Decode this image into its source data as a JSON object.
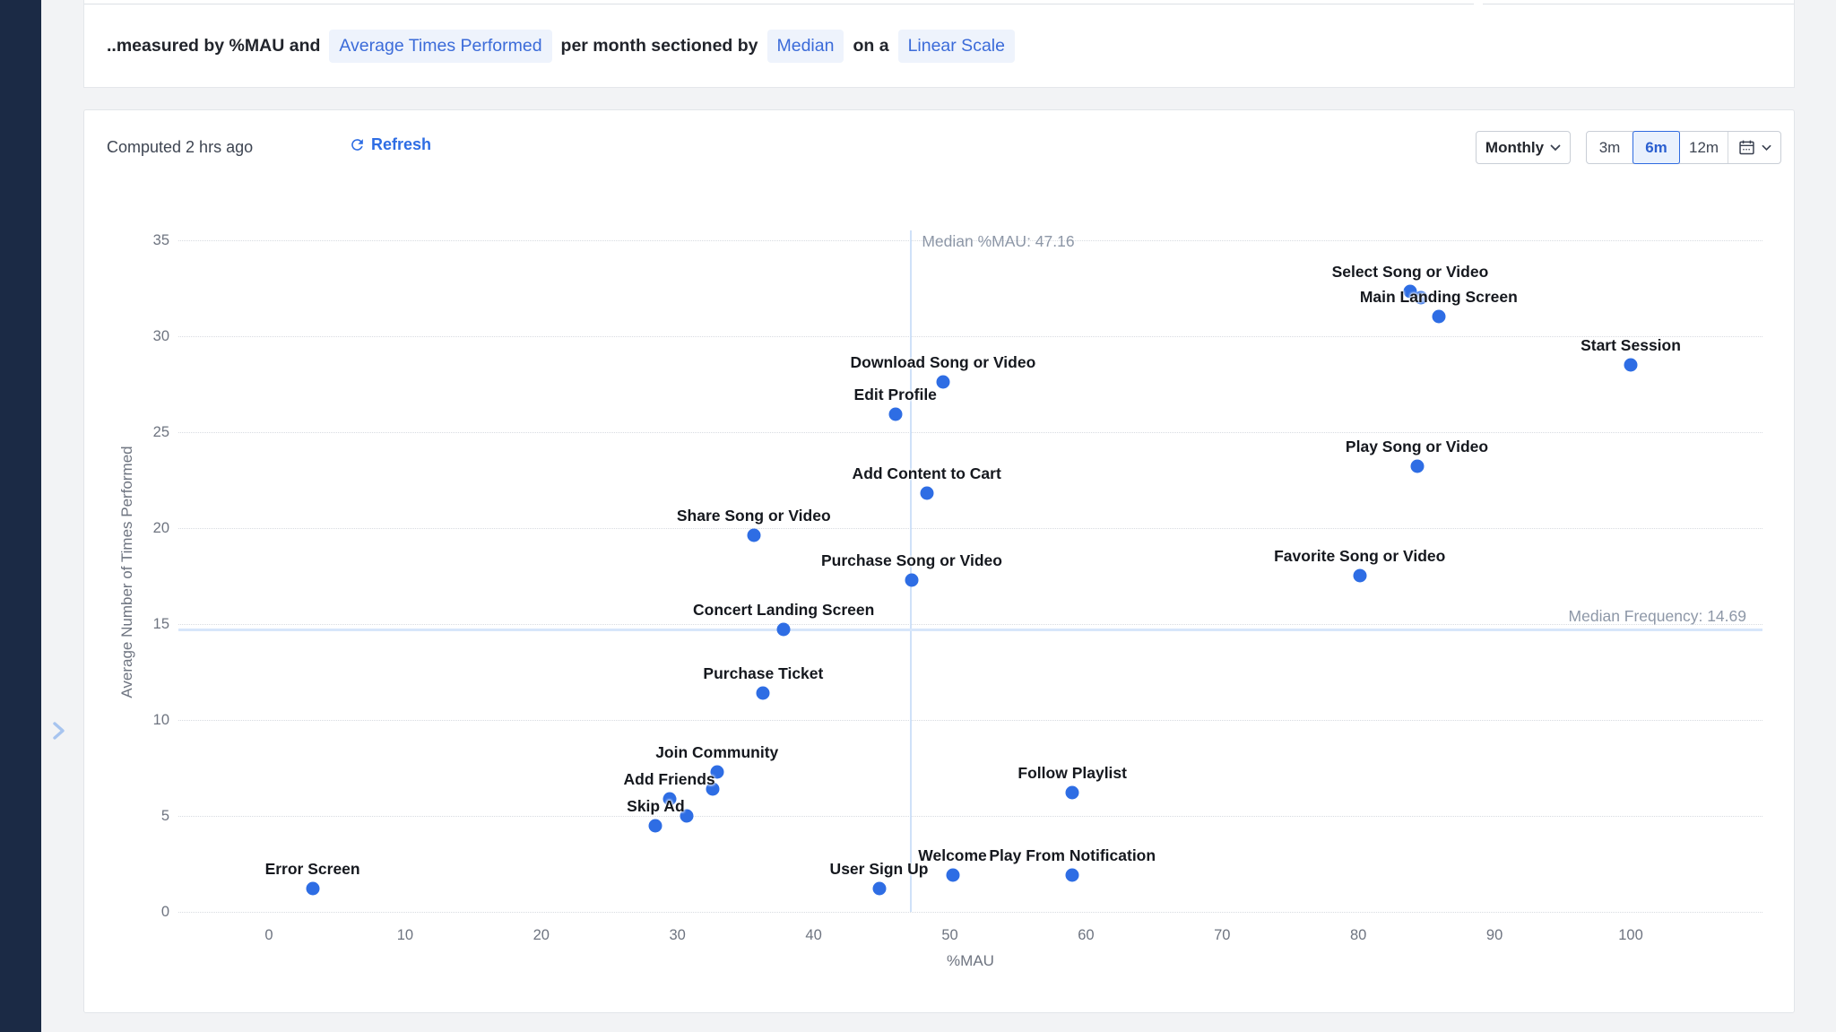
{
  "colors": {
    "accent": "#2e6de4",
    "sidebar": "#1b2a45",
    "background": "#f2f3f5",
    "point": "#2e6de4",
    "median_line": "#cfe1f8",
    "selected_range_bg": "#e9f1fd",
    "selected_range_border": "#2f6be0",
    "pill_bg": "#eef3fc",
    "pill_text": "#3b6bd9"
  },
  "icons": {
    "collapse_chevron": "chevron-right",
    "refresh": "refresh-circular-arrows",
    "granularity_caret": "chevron-down",
    "calendar": "calendar",
    "calendar_caret": "chevron-down"
  },
  "query_summary": {
    "prefix": "..measured by %MAU and",
    "measure_pill": "Average Times Performed",
    "mid1": "per month sectioned by",
    "section_pill": "Median",
    "mid2": "on a",
    "scale_pill": "Linear Scale"
  },
  "chart_card": {
    "computed_label": "Computed 2 hrs ago",
    "refresh_label": "Refresh",
    "granularity_label": "Monthly",
    "ranges": [
      "3m",
      "6m",
      "12m"
    ],
    "selected_range": "6m"
  },
  "chart_data": {
    "type": "scatter",
    "xlabel": "%MAU",
    "ylabel": "Average Number of Times Performed",
    "xlim": [
      0,
      109
    ],
    "ylim": [
      0,
      35
    ],
    "x_ticks": [
      0,
      10,
      20,
      30,
      40,
      50,
      60,
      70,
      80,
      90,
      100
    ],
    "y_ticks": [
      0,
      5,
      10,
      15,
      20,
      25,
      30,
      35
    ],
    "grid": "horizontal-dotted",
    "median_x": {
      "value": 47.16,
      "label": "Median %MAU: 47.16"
    },
    "median_y": {
      "value": 14.69,
      "label": "Median Frequency: 14.69"
    },
    "points": [
      {
        "label": "Select Song or Video",
        "x": 83.8,
        "y": 32.3
      },
      {
        "label": "",
        "x": 84.6,
        "y": 32.0
      },
      {
        "label": "Main Landing Screen",
        "x": 85.9,
        "y": 31.0
      },
      {
        "label": "Start Session",
        "x": 100.0,
        "y": 28.5
      },
      {
        "label": "Download Song or Video",
        "x": 49.5,
        "y": 27.6
      },
      {
        "label": "Edit Profile",
        "x": 46.0,
        "y": 25.9
      },
      {
        "label": "Play Song or Video",
        "x": 84.3,
        "y": 23.2
      },
      {
        "label": "Add Content to Cart",
        "x": 48.3,
        "y": 21.8
      },
      {
        "label": "Share Song or Video",
        "x": 35.6,
        "y": 19.6
      },
      {
        "label": "Favorite Song or Video",
        "x": 80.1,
        "y": 17.5
      },
      {
        "label": "Purchase Song or Video",
        "x": 47.2,
        "y": 17.3
      },
      {
        "label": "Concert Landing Screen",
        "x": 37.8,
        "y": 14.7
      },
      {
        "label": "Purchase Ticket",
        "x": 36.3,
        "y": 11.4
      },
      {
        "label": "Join Community",
        "x": 32.9,
        "y": 7.3
      },
      {
        "label": "",
        "x": 32.6,
        "y": 6.4
      },
      {
        "label": "Follow Playlist",
        "x": 59.0,
        "y": 6.2
      },
      {
        "label": "Add Friends",
        "x": 29.4,
        "y": 5.9
      },
      {
        "label": "",
        "x": 30.7,
        "y": 5.0
      },
      {
        "label": "Skip Ad",
        "x": 28.4,
        "y": 4.5
      },
      {
        "label": "Welcome",
        "x": 50.2,
        "y": 1.9
      },
      {
        "label": "Play From Notification",
        "x": 59.0,
        "y": 1.9
      },
      {
        "label": "User Sign Up",
        "x": 44.8,
        "y": 1.2
      },
      {
        "label": "Error Screen",
        "x": 3.2,
        "y": 1.2
      }
    ]
  }
}
